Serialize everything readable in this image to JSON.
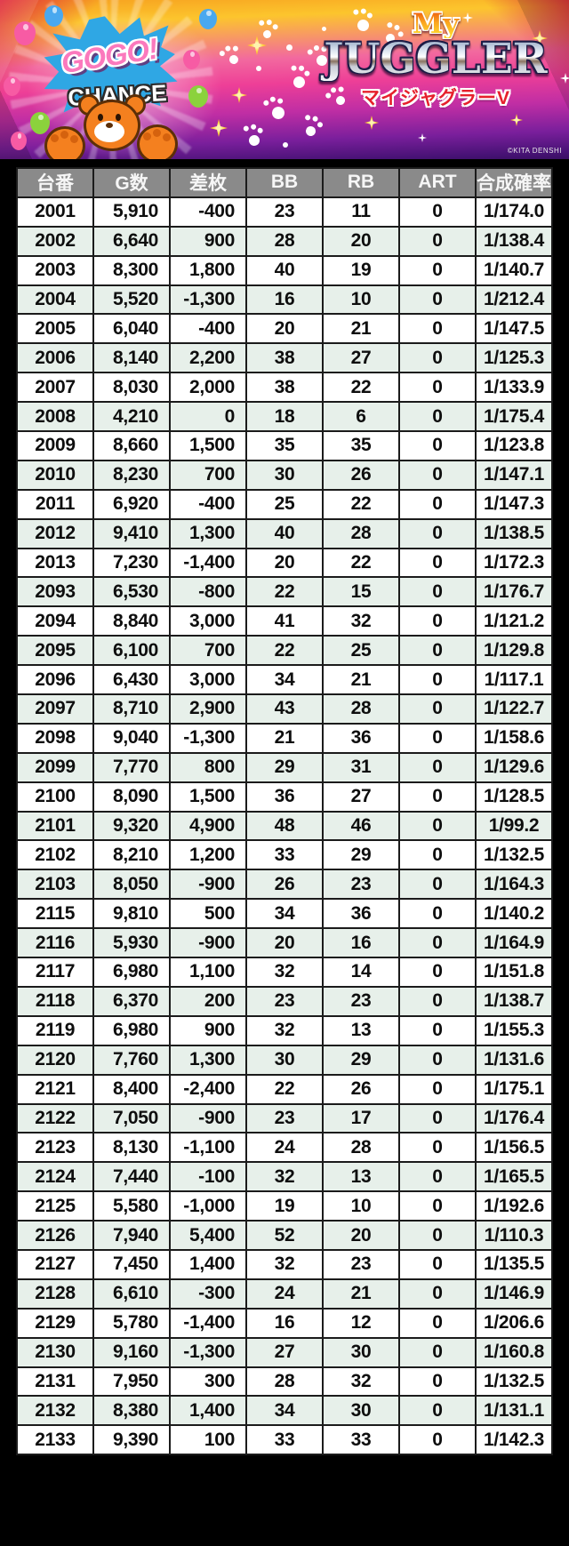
{
  "banner": {
    "gogo_text": "GOGO!",
    "chance_text": "CHANCE",
    "my_text": "My",
    "juggler_text": "JUGGLER",
    "juggler_sub": "マイジャグラーV",
    "copyright": "©KITA DENSHI"
  },
  "colors": {
    "page_background": "#000000",
    "header_background": "#8a8a8a",
    "row_white": "#ffffff",
    "row_mint": "#e7f0ea",
    "cell_border": "#1b1b1b",
    "banner_pink": "#ee3f97",
    "banner_purple": "#471275",
    "banner_orange": "#f7a01f",
    "logo_red": "#e6202c",
    "starburst_blue": "#2fa7e4"
  },
  "table": {
    "columns": [
      "台番",
      "G数",
      "差枚",
      "BB",
      "RB",
      "ART",
      "合成確率"
    ],
    "column_keys": [
      "machine-number",
      "game-count",
      "diff-medals",
      "bb-count",
      "rb-count",
      "art-count",
      "combined-probability"
    ],
    "rows": [
      [
        "2001",
        "5,910",
        "-400",
        "23",
        "11",
        "0",
        "1/174.0"
      ],
      [
        "2002",
        "6,640",
        "900",
        "28",
        "20",
        "0",
        "1/138.4"
      ],
      [
        "2003",
        "8,300",
        "1,800",
        "40",
        "19",
        "0",
        "1/140.7"
      ],
      [
        "2004",
        "5,520",
        "-1,300",
        "16",
        "10",
        "0",
        "1/212.4"
      ],
      [
        "2005",
        "6,040",
        "-400",
        "20",
        "21",
        "0",
        "1/147.5"
      ],
      [
        "2006",
        "8,140",
        "2,200",
        "38",
        "27",
        "0",
        "1/125.3"
      ],
      [
        "2007",
        "8,030",
        "2,000",
        "38",
        "22",
        "0",
        "1/133.9"
      ],
      [
        "2008",
        "4,210",
        "0",
        "18",
        "6",
        "0",
        "1/175.4"
      ],
      [
        "2009",
        "8,660",
        "1,500",
        "35",
        "35",
        "0",
        "1/123.8"
      ],
      [
        "2010",
        "8,230",
        "700",
        "30",
        "26",
        "0",
        "1/147.1"
      ],
      [
        "2011",
        "6,920",
        "-400",
        "25",
        "22",
        "0",
        "1/147.3"
      ],
      [
        "2012",
        "9,410",
        "1,300",
        "40",
        "28",
        "0",
        "1/138.5"
      ],
      [
        "2013",
        "7,230",
        "-1,400",
        "20",
        "22",
        "0",
        "1/172.3"
      ],
      [
        "2093",
        "6,530",
        "-800",
        "22",
        "15",
        "0",
        "1/176.7"
      ],
      [
        "2094",
        "8,840",
        "3,000",
        "41",
        "32",
        "0",
        "1/121.2"
      ],
      [
        "2095",
        "6,100",
        "700",
        "22",
        "25",
        "0",
        "1/129.8"
      ],
      [
        "2096",
        "6,430",
        "3,000",
        "34",
        "21",
        "0",
        "1/117.1"
      ],
      [
        "2097",
        "8,710",
        "2,900",
        "43",
        "28",
        "0",
        "1/122.7"
      ],
      [
        "2098",
        "9,040",
        "-1,300",
        "21",
        "36",
        "0",
        "1/158.6"
      ],
      [
        "2099",
        "7,770",
        "800",
        "29",
        "31",
        "0",
        "1/129.6"
      ],
      [
        "2100",
        "8,090",
        "1,500",
        "36",
        "27",
        "0",
        "1/128.5"
      ],
      [
        "2101",
        "9,320",
        "4,900",
        "48",
        "46",
        "0",
        "1/99.2"
      ],
      [
        "2102",
        "8,210",
        "1,200",
        "33",
        "29",
        "0",
        "1/132.5"
      ],
      [
        "2103",
        "8,050",
        "-900",
        "26",
        "23",
        "0",
        "1/164.3"
      ],
      [
        "2115",
        "9,810",
        "500",
        "34",
        "36",
        "0",
        "1/140.2"
      ],
      [
        "2116",
        "5,930",
        "-900",
        "20",
        "16",
        "0",
        "1/164.9"
      ],
      [
        "2117",
        "6,980",
        "1,100",
        "32",
        "14",
        "0",
        "1/151.8"
      ],
      [
        "2118",
        "6,370",
        "200",
        "23",
        "23",
        "0",
        "1/138.7"
      ],
      [
        "2119",
        "6,980",
        "900",
        "32",
        "13",
        "0",
        "1/155.3"
      ],
      [
        "2120",
        "7,760",
        "1,300",
        "30",
        "29",
        "0",
        "1/131.6"
      ],
      [
        "2121",
        "8,400",
        "-2,400",
        "22",
        "26",
        "0",
        "1/175.1"
      ],
      [
        "2122",
        "7,050",
        "-900",
        "23",
        "17",
        "0",
        "1/176.4"
      ],
      [
        "2123",
        "8,130",
        "-1,100",
        "24",
        "28",
        "0",
        "1/156.5"
      ],
      [
        "2124",
        "7,440",
        "-100",
        "32",
        "13",
        "0",
        "1/165.5"
      ],
      [
        "2125",
        "5,580",
        "-1,000",
        "19",
        "10",
        "0",
        "1/192.6"
      ],
      [
        "2126",
        "7,940",
        "5,400",
        "52",
        "20",
        "0",
        "1/110.3"
      ],
      [
        "2127",
        "7,450",
        "1,400",
        "32",
        "23",
        "0",
        "1/135.5"
      ],
      [
        "2128",
        "6,610",
        "-300",
        "24",
        "21",
        "0",
        "1/146.9"
      ],
      [
        "2129",
        "5,780",
        "-1,400",
        "16",
        "12",
        "0",
        "1/206.6"
      ],
      [
        "2130",
        "9,160",
        "-1,300",
        "27",
        "30",
        "0",
        "1/160.8"
      ],
      [
        "2131",
        "7,950",
        "300",
        "28",
        "32",
        "0",
        "1/132.5"
      ],
      [
        "2132",
        "8,380",
        "1,400",
        "34",
        "30",
        "0",
        "1/131.1"
      ],
      [
        "2133",
        "9,390",
        "100",
        "33",
        "33",
        "0",
        "1/142.3"
      ]
    ]
  }
}
